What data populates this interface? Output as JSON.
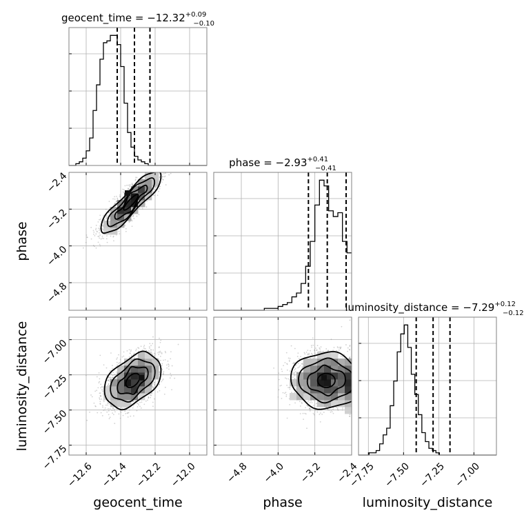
{
  "chart_data": {
    "type": "corner",
    "parameters": [
      {
        "key": "geocent_time",
        "label": "geocent_time",
        "title_main": "geocent_time = −12.32",
        "title_sup": "+0.09",
        "title_sub": "−0.10",
        "median": -12.32,
        "q_low": -12.42,
        "q_high": -12.23,
        "range": [
          -12.7,
          -11.9
        ],
        "ticks": [
          -12.6,
          -12.4,
          -12.2,
          -12.0
        ],
        "tick_labels": [
          "−12.6",
          "−12.4",
          "−12.2",
          "−12.0"
        ],
        "hist": {
          "edges_start": -12.7,
          "bin_width": 0.02,
          "counts": [
            0,
            0,
            1,
            2,
            4,
            8,
            15,
            30,
            44,
            58,
            67,
            68,
            71,
            71,
            66,
            54,
            34,
            18,
            10,
            5,
            3,
            2,
            1,
            0,
            0,
            0,
            0,
            0,
            0,
            0,
            0,
            0,
            0,
            0,
            0,
            0,
            0,
            0,
            0,
            0
          ]
        }
      },
      {
        "key": "phase",
        "label": "phase",
        "title_main": "phase = −2.93",
        "title_sup": "+0.41",
        "title_sub": "−0.41",
        "median": -2.93,
        "q_low": -3.34,
        "q_high": -2.52,
        "range": [
          -5.4,
          -2.4
        ],
        "ticks": [
          -4.8,
          -4.0,
          -3.2,
          -2.4
        ],
        "tick_labels": [
          "−4.8",
          "−4.0",
          "−3.2",
          "−2.4"
        ],
        "hist": {
          "edges_start": -5.4,
          "bin_width": 0.1,
          "counts": [
            0,
            0,
            0,
            0,
            0,
            0,
            0,
            0,
            0,
            0,
            0,
            1,
            1,
            1,
            2,
            3,
            4,
            7,
            9,
            14,
            23,
            36,
            55,
            68,
            65,
            52,
            49,
            51,
            36,
            30
          ]
        }
      },
      {
        "key": "luminosity_distance",
        "label": "luminosity_distance",
        "title_main": "luminosity_distance = −7.29",
        "title_sup": "+0.12",
        "title_sub": "−0.12",
        "median": -7.29,
        "q_low": -7.41,
        "q_high": -7.17,
        "range": [
          -7.82,
          -6.84
        ],
        "ticks": [
          -7.75,
          -7.5,
          -7.25,
          -7.0
        ],
        "tick_labels": [
          "−7.75",
          "−7.50",
          "−7.25",
          "−7.00"
        ],
        "hist": {
          "edges_start": -7.82,
          "bin_width": 0.025,
          "counts": [
            0,
            0,
            0,
            1,
            1,
            2,
            5,
            9,
            12,
            22,
            33,
            46,
            54,
            58,
            48,
            36,
            27,
            18,
            10,
            6,
            3,
            2,
            1,
            0,
            0,
            0,
            0,
            0,
            0,
            0,
            0,
            0,
            0,
            0,
            0,
            0,
            0,
            0,
            0,
            0
          ]
        }
      }
    ],
    "pairs": [
      {
        "x": "geocent_time",
        "y": "phase",
        "mean": [
          -12.34,
          -3.05
        ],
        "sd": [
          0.085,
          0.34
        ],
        "rho": 0.88,
        "peak": [
          -12.36,
          -2.85
        ]
      },
      {
        "x": "geocent_time",
        "y": "luminosity_distance",
        "mean": [
          -12.33,
          -7.29
        ],
        "sd": [
          0.08,
          0.1
        ],
        "rho": 0.45,
        "peak": [
          -12.28,
          -7.27
        ]
      },
      {
        "x": "phase",
        "y": "luminosity_distance",
        "mean": [
          -2.95,
          -7.29
        ],
        "sd": [
          0.38,
          0.1
        ],
        "rho": 0.0,
        "peak": [
          -3.0,
          -7.27
        ]
      }
    ],
    "grid": true,
    "quantiles": [
      0.16,
      0.5,
      0.84
    ]
  }
}
